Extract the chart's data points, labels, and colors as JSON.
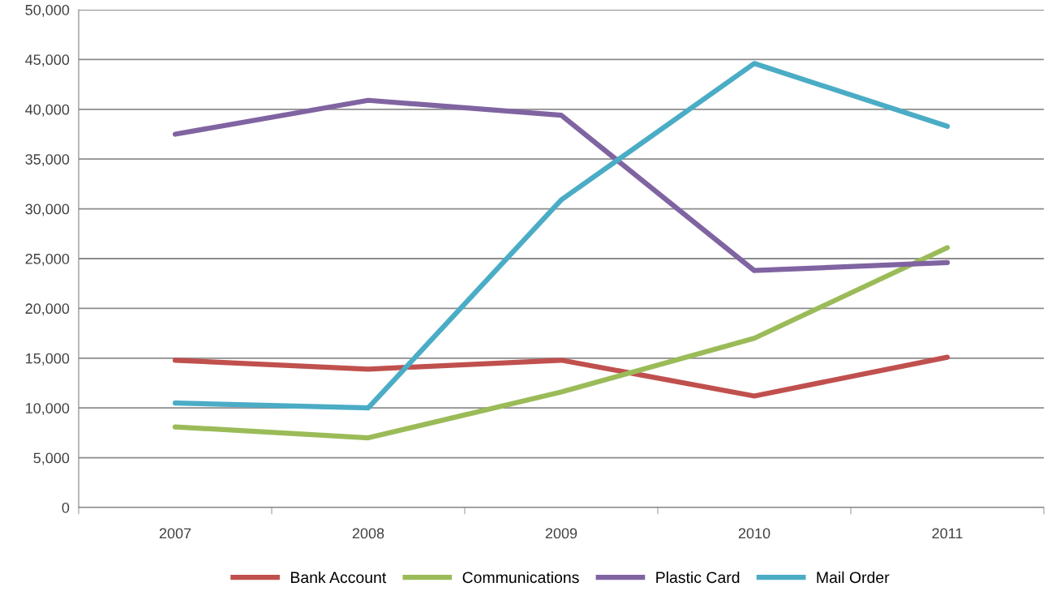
{
  "chart_data": {
    "type": "line",
    "categories": [
      "2007",
      "2008",
      "2009",
      "2010",
      "2011"
    ],
    "series": [
      {
        "name": "Bank Account",
        "color": "#c0504d",
        "values": [
          14800,
          13900,
          14800,
          11200,
          15100
        ]
      },
      {
        "name": "Communications",
        "color": "#9bbb59",
        "values": [
          8100,
          7000,
          11600,
          17000,
          26100
        ]
      },
      {
        "name": "Plastic Card",
        "color": "#8064a2",
        "values": [
          37500,
          40900,
          39400,
          23800,
          24600
        ]
      },
      {
        "name": "Mail Order",
        "color": "#4bacc6",
        "values": [
          10500,
          10000,
          30900,
          44600,
          38300
        ]
      }
    ],
    "ylim": [
      0,
      50000
    ],
    "yticks": [
      {
        "value": 0,
        "label": "0"
      },
      {
        "value": 5000,
        "label": "5,000"
      },
      {
        "value": 10000,
        "label": "10,000"
      },
      {
        "value": 15000,
        "label": "15,000"
      },
      {
        "value": 20000,
        "label": "20,000"
      },
      {
        "value": 25000,
        "label": "25,000"
      },
      {
        "value": 30000,
        "label": "30,000"
      },
      {
        "value": 35000,
        "label": "35,000"
      },
      {
        "value": 40000,
        "label": "40,000"
      },
      {
        "value": 45000,
        "label": "45,000"
      },
      {
        "value": 50000,
        "label": "50,000"
      }
    ],
    "grid": "y",
    "legend": "bottom",
    "marker": "none",
    "line_style": "solid"
  }
}
